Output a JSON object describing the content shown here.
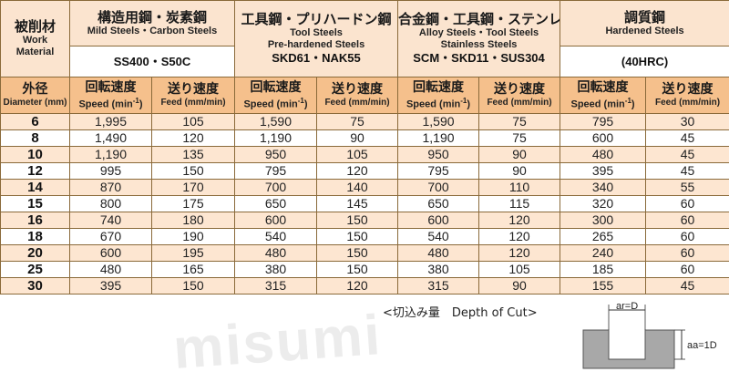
{
  "table": {
    "header": {
      "work_material": {
        "jp": "被削材",
        "en": [
          "Work",
          "Material"
        ]
      },
      "groups": [
        {
          "jp": "構造用鋼・炭素鋼",
          "en": [
            "Mild Steels・Carbon Steels"
          ],
          "grade": "SS400・S50C"
        },
        {
          "jp": "工具鋼・プリハードン鋼",
          "en": [
            "Tool Steels",
            "Pre-hardened Steels"
          ],
          "grade": "SKD61・NAK55"
        },
        {
          "jp": "合金鋼・工具鋼・ステンレス鋼",
          "en": [
            "Alloy Steels・Tool Steels",
            "Stainless Steels"
          ],
          "grade": "SCM・SKD11・SUS304"
        },
        {
          "jp": "調質鋼",
          "en": [
            "Hardened Steels"
          ],
          "grade": "(40HRC)"
        }
      ],
      "diameter": {
        "jp": "外径",
        "en": "Diameter (mm)"
      },
      "speed": {
        "jp": "回転速度",
        "en": "Speed (min",
        "sup": "-1",
        "en_end": ")"
      },
      "feed": {
        "jp": "送り速度",
        "en": "Feed (mm/min)"
      }
    },
    "rows": [
      {
        "dia": "6",
        "cells": [
          "1,995",
          "105",
          "1,590",
          "75",
          "1,590",
          "75",
          "795",
          "30"
        ]
      },
      {
        "dia": "8",
        "cells": [
          "1,490",
          "120",
          "1,190",
          "90",
          "1,190",
          "75",
          "600",
          "45"
        ]
      },
      {
        "dia": "10",
        "cells": [
          "1,190",
          "135",
          "950",
          "105",
          "950",
          "90",
          "480",
          "45"
        ]
      },
      {
        "dia": "12",
        "cells": [
          "995",
          "150",
          "795",
          "120",
          "795",
          "90",
          "395",
          "45"
        ]
      },
      {
        "dia": "14",
        "cells": [
          "870",
          "170",
          "700",
          "140",
          "700",
          "110",
          "340",
          "55"
        ]
      },
      {
        "dia": "15",
        "cells": [
          "800",
          "175",
          "650",
          "145",
          "650",
          "115",
          "320",
          "60"
        ]
      },
      {
        "dia": "16",
        "cells": [
          "740",
          "180",
          "600",
          "150",
          "600",
          "120",
          "300",
          "60"
        ]
      },
      {
        "dia": "18",
        "cells": [
          "670",
          "190",
          "540",
          "150",
          "540",
          "120",
          "265",
          "60"
        ]
      },
      {
        "dia": "20",
        "cells": [
          "600",
          "195",
          "480",
          "150",
          "480",
          "120",
          "240",
          "60"
        ]
      },
      {
        "dia": "25",
        "cells": [
          "480",
          "165",
          "380",
          "150",
          "380",
          "105",
          "185",
          "60"
        ]
      },
      {
        "dia": "30",
        "cells": [
          "395",
          "150",
          "315",
          "120",
          "315",
          "90",
          "155",
          "45"
        ]
      }
    ]
  },
  "depth_of_cut": {
    "label": "<切込み量　Depth of Cut>",
    "ar_main": "ar",
    "ar_rest": "=D",
    "aa_main": "aa",
    "aa_rest": "=1D"
  },
  "watermark": "misumi",
  "colors": {
    "header_orange": "#f5c08c",
    "header_light": "#fbe4cf",
    "row_shade": "#fde6d1",
    "border": "#8a6a3a",
    "diagram_gray": "#a8a8a8"
  }
}
